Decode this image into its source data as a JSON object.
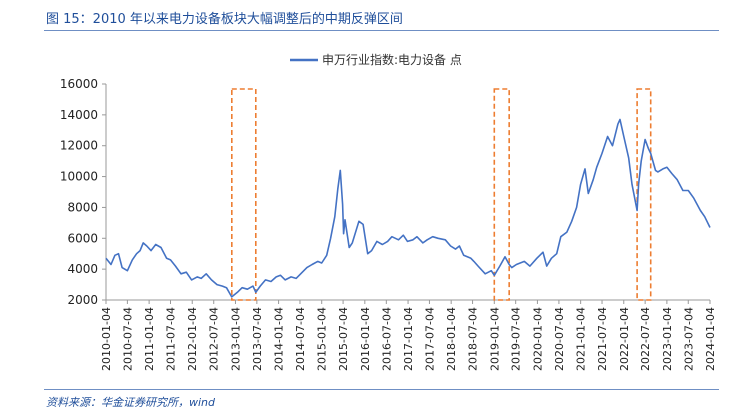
{
  "figure": {
    "title": "图 15：2010 年以来电力设备板块大幅调整后的中期反弹区间",
    "source": "资料来源：华金证券研究所，wind"
  },
  "colors": {
    "line": "#4472c4",
    "highlight": "#ed7d31",
    "header": "#1f4e9a"
  },
  "chart_data": {
    "type": "line",
    "title": "",
    "xlabel": "",
    "ylabel": "",
    "ylim": [
      2000,
      16000
    ],
    "yticks": [
      2000,
      4000,
      6000,
      8000,
      10000,
      12000,
      14000,
      16000
    ],
    "xlim": [
      "2010-01-04",
      "2024-01-04"
    ],
    "xticks": [
      "2010-01-04",
      "2010-07-04",
      "2011-01-04",
      "2011-07-04",
      "2012-01-04",
      "2012-07-04",
      "2013-01-04",
      "2013-07-04",
      "2014-01-04",
      "2014-07-04",
      "2015-01-04",
      "2015-07-04",
      "2016-01-04",
      "2016-07-04",
      "2017-01-04",
      "2017-07-04",
      "2018-01-04",
      "2018-07-04",
      "2019-01-04",
      "2019-07-04",
      "2020-01-04",
      "2020-07-04",
      "2021-01-04",
      "2021-07-04",
      "2022-01-04",
      "2022-07-04",
      "2023-01-04",
      "2023-07-04",
      "2024-01-04"
    ],
    "grid": false,
    "legend_position": "top-center",
    "series": [
      {
        "name": "申万行业指数:电力设备 点",
        "points": [
          [
            "2010-01-04",
            4700
          ],
          [
            "2010-02-15",
            4300
          ],
          [
            "2010-03-20",
            4900
          ],
          [
            "2010-04-20",
            5000
          ],
          [
            "2010-05-20",
            4100
          ],
          [
            "2010-07-04",
            3900
          ],
          [
            "2010-08-15",
            4600
          ],
          [
            "2010-09-20",
            5000
          ],
          [
            "2010-10-20",
            5200
          ],
          [
            "2010-11-15",
            5700
          ],
          [
            "2010-12-15",
            5500
          ],
          [
            "2011-01-20",
            5200
          ],
          [
            "2011-03-01",
            5600
          ],
          [
            "2011-04-15",
            5400
          ],
          [
            "2011-06-01",
            4700
          ],
          [
            "2011-07-04",
            4600
          ],
          [
            "2011-08-15",
            4200
          ],
          [
            "2011-10-01",
            3700
          ],
          [
            "2011-11-15",
            3800
          ],
          [
            "2011-12-30",
            3300
          ],
          [
            "2012-02-15",
            3500
          ],
          [
            "2012-03-20",
            3400
          ],
          [
            "2012-05-01",
            3700
          ],
          [
            "2012-06-15",
            3300
          ],
          [
            "2012-08-01",
            3000
          ],
          [
            "2012-09-15",
            2900
          ],
          [
            "2012-10-20",
            2800
          ],
          [
            "2012-12-03",
            2200
          ],
          [
            "2013-01-20",
            2500
          ],
          [
            "2013-03-01",
            2800
          ],
          [
            "2013-04-15",
            2700
          ],
          [
            "2013-06-01",
            2900
          ],
          [
            "2013-06-25",
            2500
          ],
          [
            "2013-08-01",
            2900
          ],
          [
            "2013-09-15",
            3300
          ],
          [
            "2013-11-01",
            3200
          ],
          [
            "2013-12-15",
            3500
          ],
          [
            "2014-01-20",
            3600
          ],
          [
            "2014-03-01",
            3300
          ],
          [
            "2014-04-20",
            3500
          ],
          [
            "2014-06-01",
            3400
          ],
          [
            "2014-07-10",
            3700
          ],
          [
            "2014-09-01",
            4100
          ],
          [
            "2014-10-15",
            4300
          ],
          [
            "2014-12-01",
            4500
          ],
          [
            "2015-01-04",
            4400
          ],
          [
            "2015-02-15",
            4900
          ],
          [
            "2015-03-20",
            6000
          ],
          [
            "2015-04-25",
            7400
          ],
          [
            "2015-05-20",
            9200
          ],
          [
            "2015-06-10",
            10400
          ],
          [
            "2015-06-30",
            8200
          ],
          [
            "2015-07-08",
            6300
          ],
          [
            "2015-07-20",
            7200
          ],
          [
            "2015-08-25",
            5400
          ],
          [
            "2015-09-20",
            5700
          ],
          [
            "2015-11-15",
            7100
          ],
          [
            "2015-12-20",
            6900
          ],
          [
            "2016-01-28",
            5000
          ],
          [
            "2016-03-01",
            5200
          ],
          [
            "2016-04-15",
            5800
          ],
          [
            "2016-06-01",
            5600
          ],
          [
            "2016-07-15",
            5800
          ],
          [
            "2016-08-20",
            6100
          ],
          [
            "2016-10-15",
            5900
          ],
          [
            "2016-11-25",
            6200
          ],
          [
            "2016-12-30",
            5800
          ],
          [
            "2017-02-15",
            5900
          ],
          [
            "2017-03-20",
            6100
          ],
          [
            "2017-05-10",
            5700
          ],
          [
            "2017-06-15",
            5900
          ],
          [
            "2017-08-01",
            6100
          ],
          [
            "2017-09-15",
            6000
          ],
          [
            "2017-11-15",
            5900
          ],
          [
            "2017-12-30",
            5500
          ],
          [
            "2018-02-10",
            5300
          ],
          [
            "2018-03-15",
            5500
          ],
          [
            "2018-04-20",
            4900
          ],
          [
            "2018-06-20",
            4700
          ],
          [
            "2018-07-15",
            4500
          ],
          [
            "2018-08-20",
            4200
          ],
          [
            "2018-10-19",
            3700
          ],
          [
            "2018-12-10",
            3900
          ],
          [
            "2019-01-04",
            3600
          ],
          [
            "2019-02-20",
            4200
          ],
          [
            "2019-04-05",
            4800
          ],
          [
            "2019-05-10",
            4300
          ],
          [
            "2019-06-01",
            4100
          ],
          [
            "2019-07-10",
            4300
          ],
          [
            "2019-09-15",
            4500
          ],
          [
            "2019-11-01",
            4200
          ],
          [
            "2019-12-30",
            4700
          ],
          [
            "2020-02-20",
            5100
          ],
          [
            "2020-03-23",
            4200
          ],
          [
            "2020-05-01",
            4700
          ],
          [
            "2020-06-15",
            5000
          ],
          [
            "2020-07-20",
            6100
          ],
          [
            "2020-09-10",
            6400
          ],
          [
            "2020-10-20",
            7100
          ],
          [
            "2020-12-01",
            8000
          ],
          [
            "2021-01-04",
            9500
          ],
          [
            "2021-02-10",
            10500
          ],
          [
            "2021-03-10",
            8900
          ],
          [
            "2021-04-20",
            9800
          ],
          [
            "2021-05-20",
            10600
          ],
          [
            "2021-07-04",
            11500
          ],
          [
            "2021-08-20",
            12600
          ],
          [
            "2021-10-01",
            12000
          ],
          [
            "2021-11-15",
            13400
          ],
          [
            "2021-12-03",
            13700
          ],
          [
            "2022-01-04",
            12600
          ],
          [
            "2022-02-15",
            11200
          ],
          [
            "2022-03-15",
            9500
          ],
          [
            "2022-04-27",
            7800
          ],
          [
            "2022-05-10",
            9500
          ],
          [
            "2022-06-01",
            11000
          ],
          [
            "2022-07-04",
            12400
          ],
          [
            "2022-08-01",
            11800
          ],
          [
            "2022-08-20",
            11500
          ],
          [
            "2022-09-30",
            10400
          ],
          [
            "2022-10-20",
            10300
          ],
          [
            "2022-12-01",
            10500
          ],
          [
            "2023-01-04",
            10600
          ],
          [
            "2023-02-15",
            10200
          ],
          [
            "2023-04-01",
            9800
          ],
          [
            "2023-05-20",
            9100
          ],
          [
            "2023-07-04",
            9100
          ],
          [
            "2023-08-20",
            8600
          ],
          [
            "2023-10-15",
            7800
          ],
          [
            "2023-11-20",
            7400
          ],
          [
            "2024-01-04",
            6700
          ]
        ]
      }
    ],
    "highlight_ranges": [
      [
        "2012-12-04",
        "2013-06-25"
      ],
      [
        "2019-01-04",
        "2019-05-10"
      ],
      [
        "2022-04-27",
        "2022-08-20"
      ]
    ]
  }
}
